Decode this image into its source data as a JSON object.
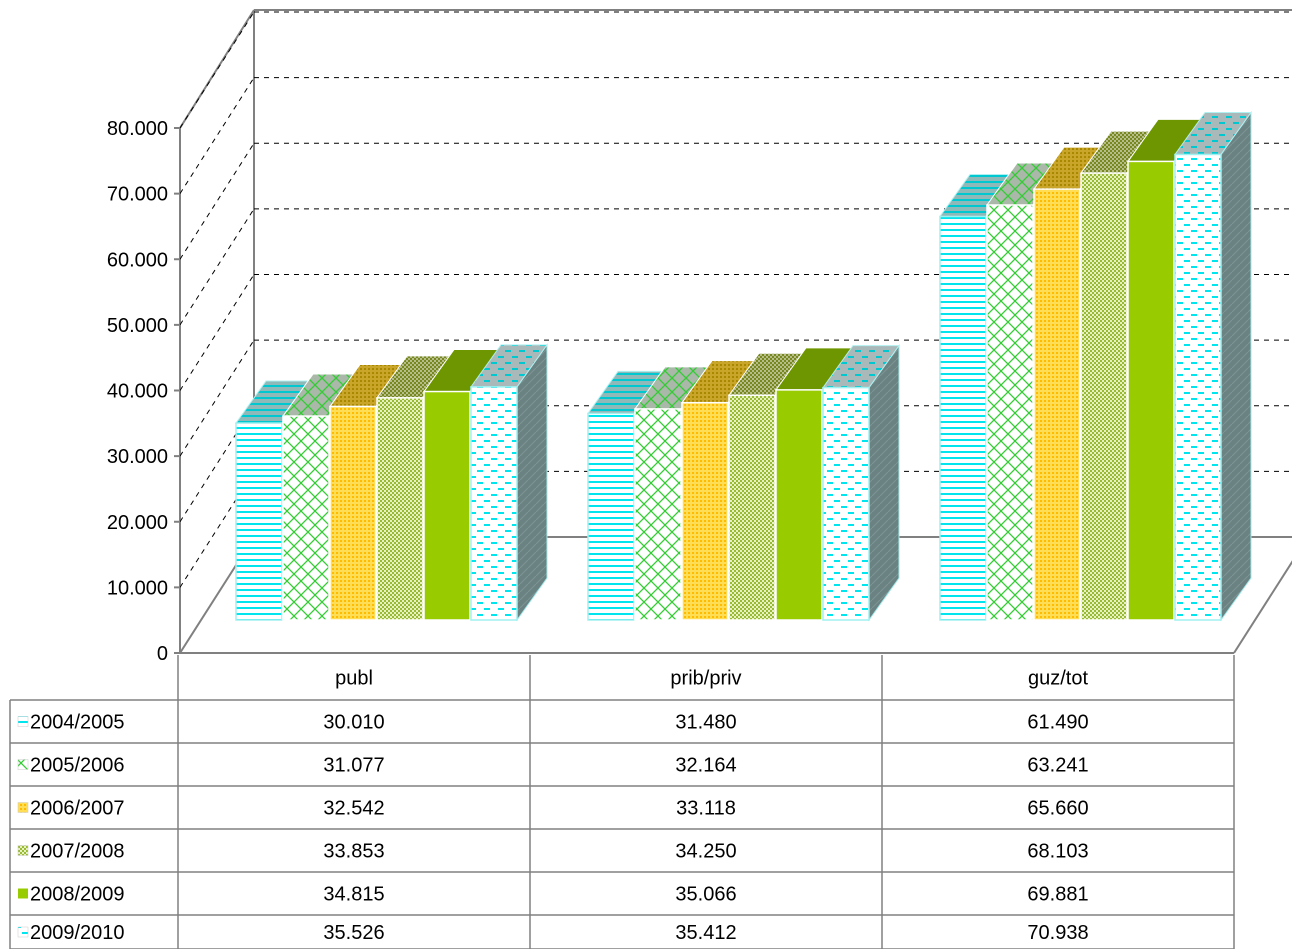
{
  "chart_data": {
    "type": "bar",
    "title": "",
    "xlabel": "",
    "ylabel": "",
    "ylim": [
      0,
      80000
    ],
    "grid": true,
    "legend_placement": "left of data table",
    "y_ticks": [
      "0",
      "10.000",
      "20.000",
      "30.000",
      "40.000",
      "50.000",
      "60.000",
      "70.000",
      "80.000"
    ],
    "categories": [
      "publ",
      "prib/priv",
      "guz/tot"
    ],
    "series": [
      {
        "name": "2004/2005",
        "values": [
          30010,
          31480,
          61490
        ],
        "labels": [
          "30.010",
          "31.480",
          "61.490"
        ],
        "color": "#00ffff",
        "pattern": "hlines"
      },
      {
        "name": "2005/2006",
        "values": [
          31077,
          32164,
          63241
        ],
        "labels": [
          "31.077",
          "32.164",
          "63.241"
        ],
        "color": "#33cc33",
        "pattern": "lattice"
      },
      {
        "name": "2006/2007",
        "values": [
          32542,
          33118,
          65660
        ],
        "labels": [
          "32.542",
          "33.118",
          "65.660"
        ],
        "color": "#ffcc33",
        "pattern": "dots"
      },
      {
        "name": "2007/2008",
        "values": [
          33853,
          34250,
          68103
        ],
        "labels": [
          "33.853",
          "34.250",
          "68.103"
        ],
        "color": "#99cc33",
        "pattern": "checker"
      },
      {
        "name": "2008/2009",
        "values": [
          34815,
          35066,
          69881
        ],
        "labels": [
          "34.815",
          "35.066",
          "69.881"
        ],
        "color": "#99cc00",
        "pattern": "solid"
      },
      {
        "name": "2009/2010",
        "values": [
          35526,
          35412,
          70938
        ],
        "labels": [
          "35.526",
          "35.412",
          "70.938"
        ],
        "color": "#00ffff",
        "pattern": "dashes"
      }
    ]
  }
}
